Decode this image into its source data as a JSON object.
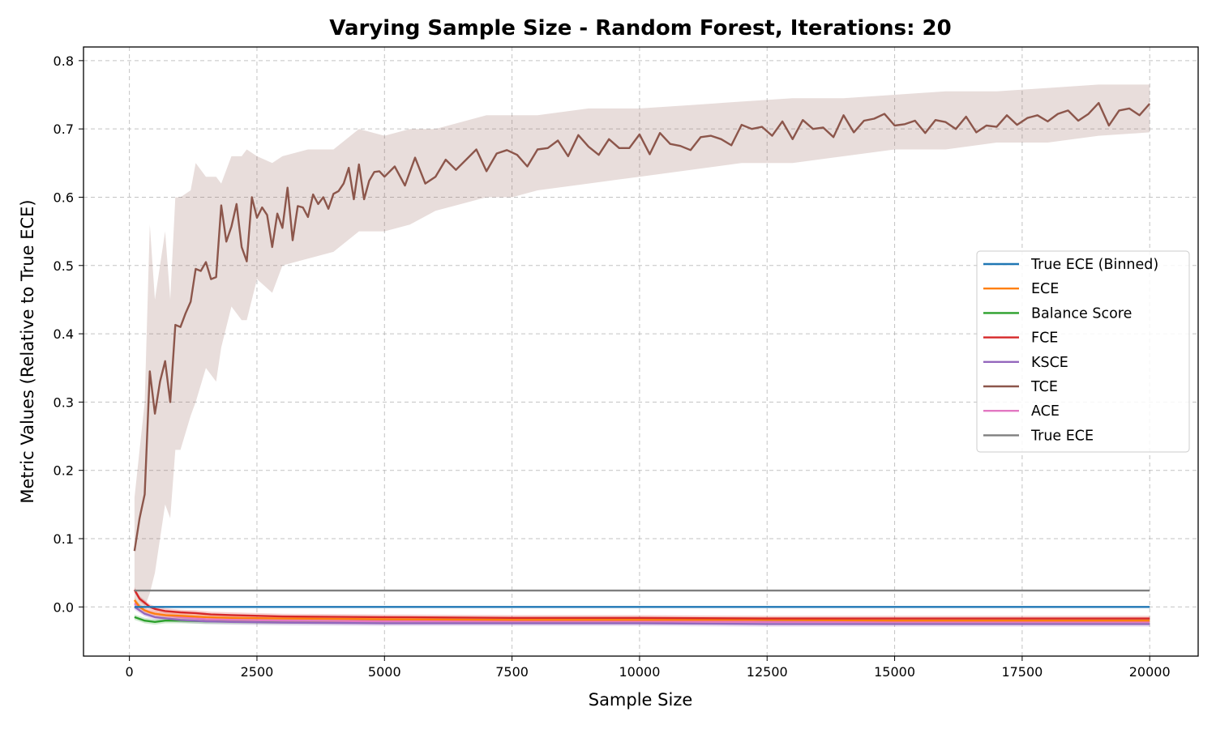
{
  "chart_data": {
    "type": "line",
    "title": "Varying Sample Size - Random Forest, Iterations: 20",
    "xlabel": "Sample Size",
    "ylabel": "Metric Values (Relative to True ECE)",
    "xlim": [
      -900,
      20950
    ],
    "ylim": [
      -0.072,
      0.82
    ],
    "xticks": [
      0,
      2500,
      5000,
      7500,
      10000,
      12500,
      15000,
      17500,
      20000
    ],
    "yticks": [
      0.0,
      0.1,
      0.2,
      0.3,
      0.4,
      0.5,
      0.6,
      0.7,
      0.8
    ],
    "ytick_labels": [
      "0.0",
      "0.1",
      "0.2",
      "0.3",
      "0.4",
      "0.5",
      "0.6",
      "0.7",
      "0.8"
    ],
    "grid": true,
    "legend_position": "center-right",
    "series": [
      {
        "name": "True ECE (Binned)",
        "color": "#1f77b4",
        "x": [
          100,
          20000
        ],
        "values": [
          0.0,
          0.0
        ]
      },
      {
        "name": "ECE",
        "color": "#ff7f0e",
        "x": [
          100,
          200,
          300,
          400,
          500,
          700,
          1000,
          1500,
          2000,
          3000,
          5000,
          7500,
          10000,
          12500,
          15000,
          17500,
          20000
        ],
        "values": [
          0.01,
          0.0,
          -0.005,
          -0.008,
          -0.01,
          -0.012,
          -0.013,
          -0.015,
          -0.016,
          -0.017,
          -0.018,
          -0.019,
          -0.019,
          -0.019,
          -0.02,
          -0.02,
          -0.02
        ]
      },
      {
        "name": "Balance Score",
        "color": "#2ca02c",
        "x": [
          100,
          300,
          500,
          700,
          1000,
          1500,
          2000,
          3000,
          5000,
          7500,
          10000,
          12500,
          15000,
          17500,
          20000
        ],
        "values": [
          -0.015,
          -0.02,
          -0.022,
          -0.02,
          -0.02,
          -0.021,
          -0.021,
          -0.021,
          -0.021,
          -0.021,
          -0.021,
          -0.021,
          -0.021,
          -0.021,
          -0.021
        ]
      },
      {
        "name": "FCE",
        "color": "#d62728",
        "x": [
          100,
          200,
          300,
          400,
          500,
          700,
          1000,
          1300,
          1600,
          2000,
          3000,
          5000,
          7500,
          10000,
          12500,
          15000,
          17500,
          20000
        ],
        "values": [
          0.025,
          0.012,
          0.006,
          0.0,
          -0.003,
          -0.006,
          -0.008,
          -0.009,
          -0.011,
          -0.012,
          -0.014,
          -0.015,
          -0.016,
          -0.016,
          -0.017,
          -0.017,
          -0.017,
          -0.017
        ]
      },
      {
        "name": "KSCE",
        "color": "#9467bd",
        "x": [
          100,
          300,
          500,
          1000,
          1500,
          2000,
          3000,
          5000,
          7500,
          10000,
          12500,
          15000,
          17500,
          20000
        ],
        "values": [
          0.0,
          -0.01,
          -0.015,
          -0.019,
          -0.021,
          -0.022,
          -0.023,
          -0.024,
          -0.024,
          -0.024,
          -0.025,
          -0.025,
          -0.025,
          -0.025
        ]
      },
      {
        "name": "TCE",
        "color": "#8c564b",
        "x": [
          100,
          200,
          300,
          400,
          500,
          600,
          700,
          800,
          900,
          1000,
          1100,
          1200,
          1300,
          1400,
          1500,
          1600,
          1700,
          1800,
          1900,
          2000,
          2100,
          2200,
          2300,
          2400,
          2500,
          2600,
          2700,
          2800,
          2900,
          3000,
          3100,
          3200,
          3300,
          3400,
          3500,
          3600,
          3700,
          3800,
          3900,
          4000,
          4100,
          4200,
          4300,
          4400,
          4500,
          4600,
          4700,
          4800,
          4900,
          5000,
          5200,
          5400,
          5600,
          5800,
          6000,
          6200,
          6400,
          6600,
          6800,
          7000,
          7200,
          7400,
          7600,
          7800,
          8000,
          8200,
          8400,
          8600,
          8800,
          9000,
          9200,
          9400,
          9600,
          9800,
          10000,
          10200,
          10400,
          10600,
          10800,
          11000,
          11200,
          11400,
          11600,
          11800,
          12000,
          12200,
          12400,
          12600,
          12800,
          13000,
          13200,
          13400,
          13600,
          13800,
          14000,
          14200,
          14400,
          14600,
          14800,
          15000,
          15200,
          15400,
          15600,
          15800,
          16000,
          16200,
          16400,
          16600,
          16800,
          17000,
          17200,
          17400,
          17600,
          17800,
          18000,
          18200,
          18400,
          18600,
          18800,
          19000,
          19200,
          19400,
          19600,
          19800,
          20000
        ],
        "values": [
          0.082,
          0.13,
          0.165,
          0.345,
          0.283,
          0.33,
          0.36,
          0.3,
          0.413,
          0.41,
          0.43,
          0.447,
          0.495,
          0.492,
          0.505,
          0.48,
          0.483,
          0.588,
          0.535,
          0.557,
          0.59,
          0.527,
          0.506,
          0.6,
          0.57,
          0.585,
          0.574,
          0.527,
          0.576,
          0.555,
          0.614,
          0.537,
          0.587,
          0.585,
          0.571,
          0.604,
          0.59,
          0.6,
          0.583,
          0.605,
          0.609,
          0.62,
          0.643,
          0.597,
          0.648,
          0.597,
          0.624,
          0.637,
          0.638,
          0.63,
          0.645,
          0.617,
          0.658,
          0.62,
          0.63,
          0.655,
          0.64,
          0.655,
          0.67,
          0.638,
          0.664,
          0.669,
          0.662,
          0.645,
          0.67,
          0.672,
          0.683,
          0.66,
          0.691,
          0.674,
          0.662,
          0.685,
          0.672,
          0.672,
          0.692,
          0.663,
          0.694,
          0.678,
          0.675,
          0.669,
          0.688,
          0.69,
          0.685,
          0.676,
          0.706,
          0.7,
          0.703,
          0.69,
          0.711,
          0.685,
          0.713,
          0.7,
          0.702,
          0.688,
          0.72,
          0.695,
          0.712,
          0.715,
          0.722,
          0.705,
          0.707,
          0.712,
          0.694,
          0.713,
          0.71,
          0.7,
          0.718,
          0.695,
          0.705,
          0.703,
          0.72,
          0.706,
          0.716,
          0.72,
          0.711,
          0.722,
          0.727,
          0.712,
          0.722,
          0.738,
          0.705,
          0.727,
          0.73,
          0.72,
          0.737
        ]
      },
      {
        "name": "ACE",
        "color": "#e377c2",
        "x": [
          100,
          300,
          500,
          700,
          1000,
          1500,
          2000,
          3000,
          5000,
          7500,
          10000,
          12500,
          15000,
          17500,
          20000
        ],
        "values": [
          0.005,
          -0.005,
          -0.01,
          -0.012,
          -0.015,
          -0.018,
          -0.019,
          -0.02,
          -0.021,
          -0.021,
          -0.021,
          -0.022,
          -0.022,
          -0.022,
          -0.022
        ]
      },
      {
        "name": "True ECE",
        "color": "#7f7f7f",
        "x": [
          100,
          20000
        ],
        "values": [
          0.024,
          0.024
        ]
      }
    ],
    "tce_band": {
      "color": "#8c564b",
      "x": [
        100,
        300,
        400,
        500,
        600,
        700,
        800,
        900,
        1000,
        1200,
        1300,
        1500,
        1700,
        1800,
        2000,
        2200,
        2300,
        2500,
        2800,
        3000,
        3500,
        4000,
        4500,
        5000,
        5500,
        6000,
        7000,
        7500,
        8000,
        9000,
        10000,
        11000,
        12000,
        13000,
        14000,
        15000,
        16000,
        17000,
        18000,
        19000,
        20000
      ],
      "upper": [
        0.16,
        0.3,
        0.56,
        0.45,
        0.5,
        0.55,
        0.45,
        0.6,
        0.6,
        0.61,
        0.65,
        0.63,
        0.63,
        0.62,
        0.66,
        0.66,
        0.67,
        0.66,
        0.65,
        0.66,
        0.67,
        0.67,
        0.7,
        0.69,
        0.7,
        0.7,
        0.72,
        0.72,
        0.72,
        0.73,
        0.73,
        0.735,
        0.74,
        0.745,
        0.745,
        0.75,
        0.755,
        0.755,
        0.76,
        0.765,
        0.765
      ],
      "lower": [
        0.0,
        0.0,
        0.02,
        0.05,
        0.1,
        0.15,
        0.13,
        0.23,
        0.23,
        0.28,
        0.3,
        0.35,
        0.33,
        0.38,
        0.44,
        0.42,
        0.42,
        0.48,
        0.46,
        0.5,
        0.51,
        0.52,
        0.55,
        0.55,
        0.56,
        0.58,
        0.6,
        0.6,
        0.61,
        0.62,
        0.63,
        0.64,
        0.65,
        0.65,
        0.66,
        0.67,
        0.67,
        0.68,
        0.68,
        0.69,
        0.695
      ]
    }
  }
}
